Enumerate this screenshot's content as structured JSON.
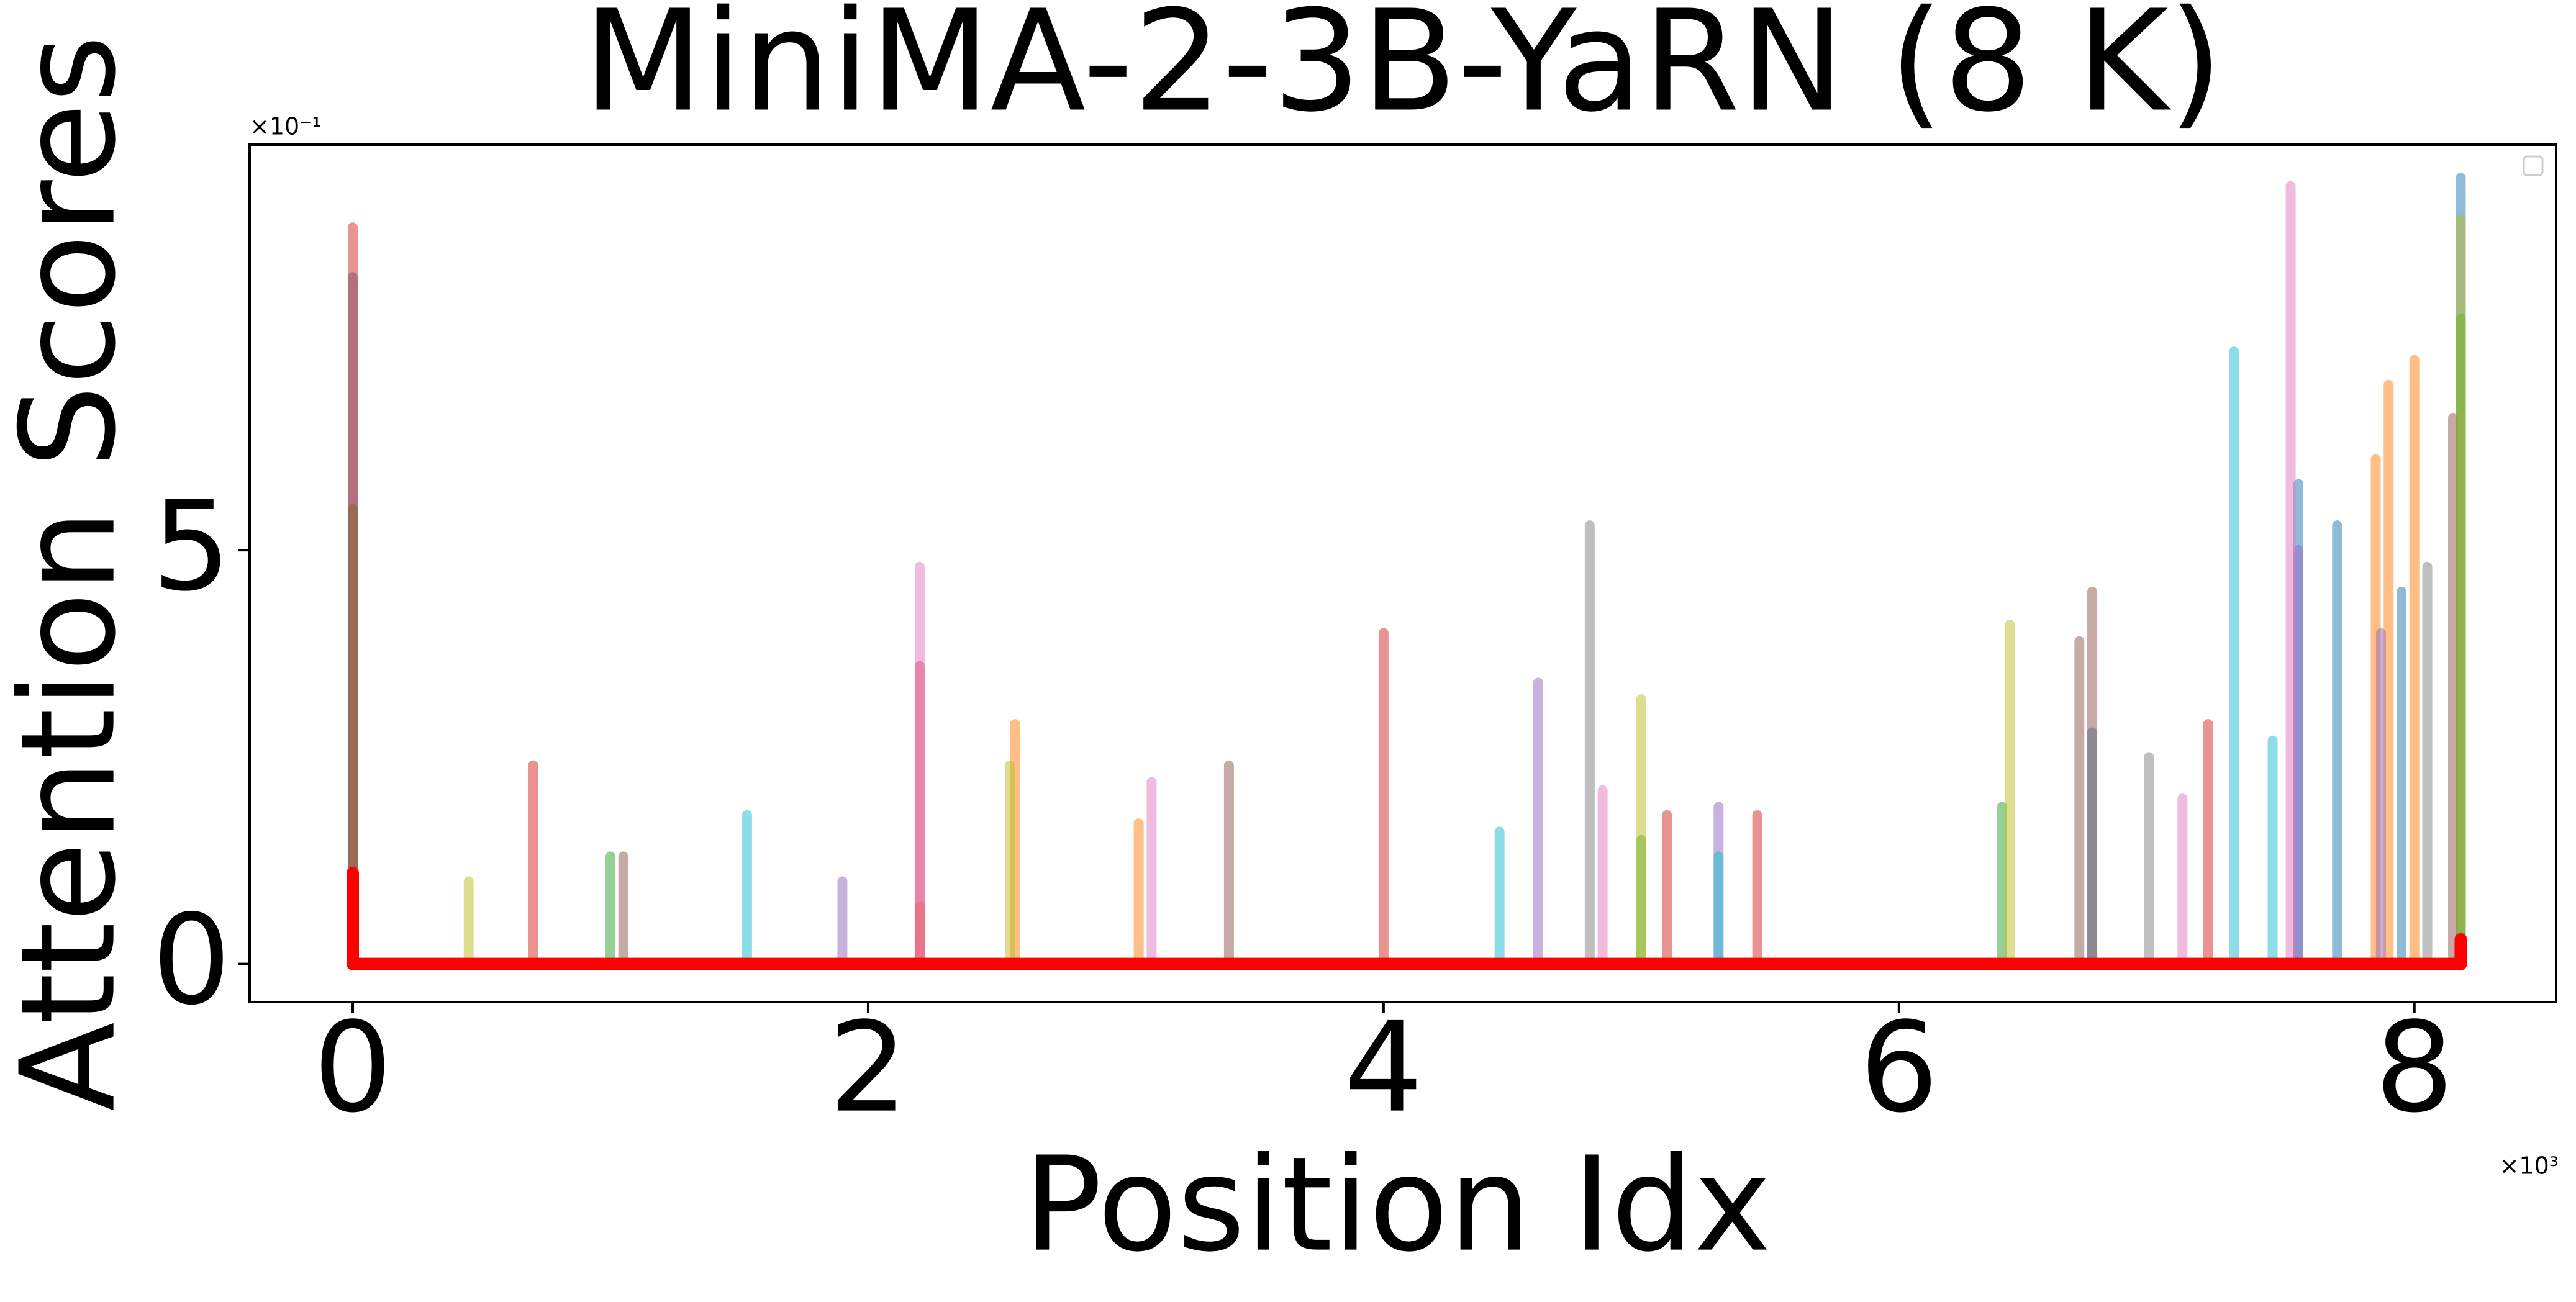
{
  "chart_data": {
    "type": "stem",
    "title": "MiniMA-2-3B-YaRN (8 K)",
    "x_label": "Position Idx",
    "y_label": "Attention Scores",
    "x_offset_label": "×10³",
    "y_offset_label": "×10⁻¹",
    "xlim": [
      -0.4,
      8.55
    ],
    "xticks": [
      0,
      2,
      4,
      6,
      8
    ],
    "ylim": [
      -0.46,
      9.9
    ],
    "yticks": [
      0,
      5
    ],
    "series": [
      {
        "color": "#1f77b4",
        "x": [
          0,
          6.75,
          7.55,
          7.7,
          7.95,
          8.18
        ],
        "values": [
          8.3,
          2.8,
          5.8,
          5.3,
          4.5,
          9.5
        ]
      },
      {
        "color": "#ff7f0e",
        "x": [
          2.2,
          2.57,
          3.05,
          7.85,
          7.9,
          8.0
        ],
        "values": [
          0.7,
          2.9,
          1.7,
          6.1,
          7.0,
          7.3
        ]
      },
      {
        "color": "#2ca02c",
        "x": [
          0,
          1.0,
          5.0,
          6.4,
          8.18
        ],
        "values": [
          5.5,
          1.3,
          1.5,
          1.9,
          7.8
        ]
      },
      {
        "color": "#d62728",
        "x": [
          0,
          0.7,
          2.2,
          4.0,
          5.1,
          5.45,
          7.2
        ],
        "values": [
          8.9,
          2.4,
          3.6,
          4.0,
          1.8,
          1.8,
          2.9
        ]
      },
      {
        "color": "#9467bd",
        "x": [
          1.9,
          4.6,
          5.3,
          7.55,
          7.87
        ],
        "values": [
          1.0,
          3.4,
          1.9,
          5.0,
          4.0
        ]
      },
      {
        "color": "#8c564b",
        "x": [
          1.05,
          3.4,
          6.7,
          6.75,
          8.15
        ],
        "values": [
          1.3,
          2.4,
          3.9,
          4.5,
          6.6
        ]
      },
      {
        "color": "#e377c2",
        "x": [
          2.2,
          3.1,
          4.85,
          7.1,
          7.52
        ],
        "values": [
          4.8,
          2.2,
          2.1,
          2.0,
          9.4
        ]
      },
      {
        "color": "#7f7f7f",
        "x": [
          4.8,
          6.97,
          8.05
        ],
        "values": [
          5.3,
          2.5,
          4.8
        ]
      },
      {
        "color": "#bcbd22",
        "x": [
          0.45,
          2.55,
          5.0,
          6.43,
          8.18
        ],
        "values": [
          1.0,
          2.4,
          3.2,
          4.1,
          9.0
        ]
      },
      {
        "color": "#17becf",
        "x": [
          1.53,
          4.45,
          5.3,
          7.3,
          7.45
        ],
        "values": [
          1.8,
          1.6,
          1.3,
          7.4,
          2.7
        ]
      },
      {
        "color": "#ff0000",
        "x": [
          0,
          8.18
        ],
        "values": [
          1.1,
          0.3
        ]
      }
    ]
  }
}
